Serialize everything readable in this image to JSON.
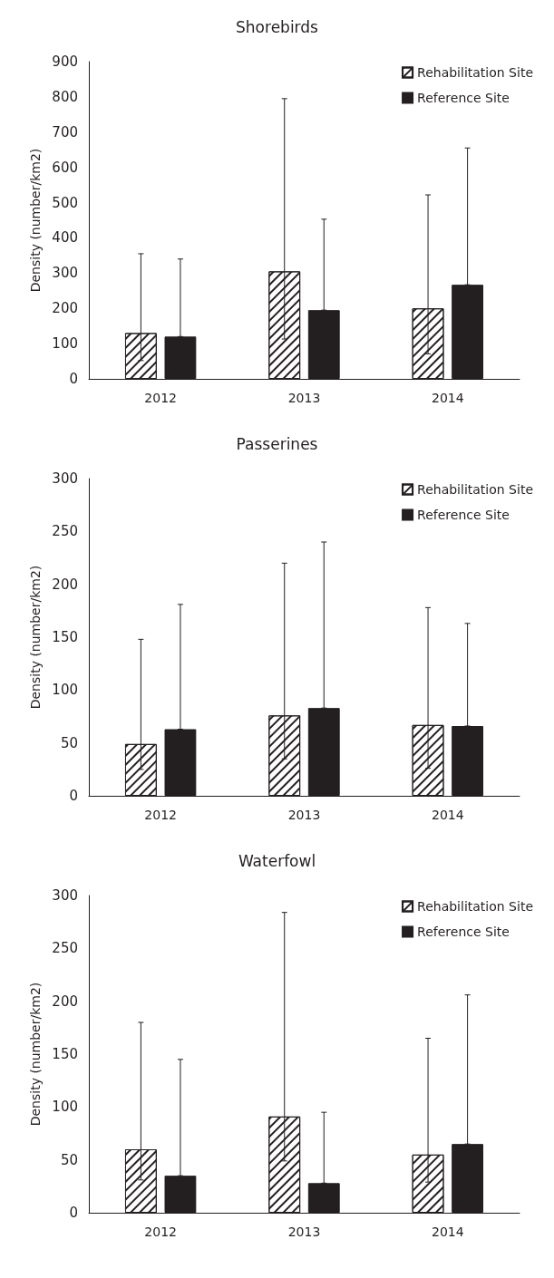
{
  "chart_data": [
    {
      "type": "bar",
      "title": "Shorebirds",
      "ylabel": "Density (number/km2)",
      "categories": [
        "2012",
        "2013",
        "2014"
      ],
      "ylim": [
        0,
        900
      ],
      "yticks": [
        0,
        100,
        200,
        300,
        400,
        500,
        600,
        700,
        800,
        900
      ],
      "grid": false,
      "legend": "top right",
      "series": [
        {
          "name": "Rehabilitation Site",
          "color": "#ffffff",
          "values": [
            130,
            305,
            200
          ],
          "errors": [
            [
              52,
              355
            ],
            [
              113,
              795
            ],
            [
              71,
              522
            ]
          ]
        },
        {
          "name": "Reference Site",
          "color": "#231f20",
          "values": [
            120,
            195,
            267
          ],
          "errors": [
            [
              120,
              340
            ],
            [
              195,
              453
            ],
            [
              267,
              655
            ]
          ]
        }
      ]
    },
    {
      "type": "bar",
      "title": "Passerines",
      "ylabel": "Density (number/km2)",
      "categories": [
        "2012",
        "2013",
        "2014"
      ],
      "ylim": [
        0,
        300
      ],
      "yticks": [
        0,
        50,
        100,
        150,
        200,
        250,
        300
      ],
      "grid": false,
      "legend": "top right",
      "series": [
        {
          "name": "Rehabilitation Site",
          "color": "#ffffff",
          "values": [
            49,
            76,
            67
          ],
          "errors": [
            [
              25,
              148
            ],
            [
              35,
              220
            ],
            [
              26,
              178
            ]
          ]
        },
        {
          "name": "Reference Site",
          "color": "#231f20",
          "values": [
            63,
            83,
            66
          ],
          "errors": [
            [
              63,
              181
            ],
            [
              83,
              240
            ],
            [
              66,
              163
            ]
          ]
        }
      ]
    },
    {
      "type": "bar",
      "title": "Waterfowl",
      "ylabel": "Density (number/km2)",
      "categories": [
        "2012",
        "2013",
        "2014"
      ],
      "ylim": [
        0,
        300
      ],
      "yticks": [
        0,
        50,
        100,
        150,
        200,
        250,
        300
      ],
      "grid": false,
      "legend": "top right",
      "series": [
        {
          "name": "Rehabilitation Site",
          "color": "#ffffff",
          "values": [
            60,
            91,
            55
          ],
          "errors": [
            [
              31,
              180
            ],
            [
              49,
              284
            ],
            [
              29,
              165
            ]
          ]
        },
        {
          "name": "Reference Site",
          "color": "#231f20",
          "values": [
            35,
            28,
            65
          ],
          "errors": [
            [
              35,
              145
            ],
            [
              28,
              95
            ],
            [
              65,
              206
            ]
          ]
        }
      ]
    }
  ]
}
